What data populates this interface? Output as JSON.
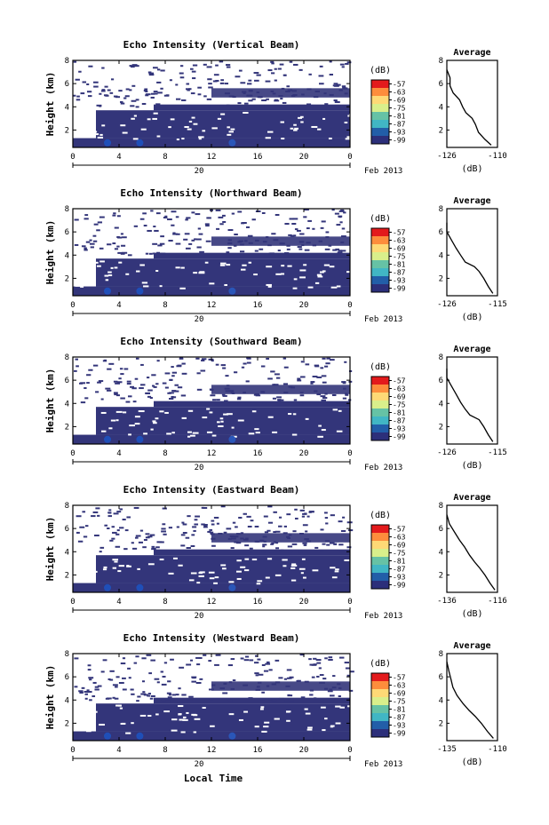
{
  "figure": {
    "colorbar_unit": "(dB)",
    "colorbar_ticks": [
      "-57",
      "-63",
      "-69",
      "-75",
      "-81",
      "-87",
      "-93",
      "-99"
    ],
    "colorbar_colors": [
      "#e31a1c",
      "#fd8d3c",
      "#fed976",
      "#d9ef8b",
      "#66c2a5",
      "#41b6c4",
      "#225ea8",
      "#2c2f7a"
    ],
    "plot_fill": "#33357a",
    "date_label": "Feb 2013",
    "day_label": "20",
    "x_ticks": [
      "0",
      "4",
      "8",
      "12",
      "16",
      "20",
      "0"
    ],
    "y_ticks": [
      "2",
      "4",
      "6",
      "8"
    ],
    "ylabel": "Height (km)",
    "xlabel": "Local Time"
  },
  "chart_data": [
    {
      "type": "heatmap",
      "title": "Echo Intensity (Vertical Beam)",
      "ylabel": "Height (km)",
      "xlim": [
        0,
        24
      ],
      "ylim": [
        0.5,
        8
      ],
      "profile": {
        "title": "Average",
        "xlabel": "(dB)",
        "x_ticks": [
          "-126",
          "-110"
        ],
        "xlim": [
          -126,
          -110
        ],
        "y_ticks": [
          "2",
          "4",
          "6",
          "8"
        ],
        "points": [
          [
            -112,
            0.7
          ],
          [
            -114,
            1.2
          ],
          [
            -116,
            1.8
          ],
          [
            -117,
            2.5
          ],
          [
            -118,
            3.0
          ],
          [
            -120,
            3.5
          ],
          [
            -121,
            4.0
          ],
          [
            -122,
            4.6
          ],
          [
            -124,
            5.2
          ],
          [
            -125,
            5.8
          ],
          [
            -125,
            6.5
          ],
          [
            -126,
            7.2
          ]
        ]
      }
    },
    {
      "type": "heatmap",
      "title": "Echo Intensity (Northward Beam)",
      "ylabel": "Height (km)",
      "xlim": [
        0,
        24
      ],
      "ylim": [
        0.5,
        8
      ],
      "profile": {
        "title": "Average",
        "xlabel": "(dB)",
        "x_ticks": [
          "-126",
          "-115"
        ],
        "xlim": [
          -126,
          -115
        ],
        "y_ticks": [
          "2",
          "4",
          "6",
          "8"
        ],
        "points": [
          [
            -116,
            0.7
          ],
          [
            -117,
            1.3
          ],
          [
            -118,
            2.0
          ],
          [
            -119,
            2.6
          ],
          [
            -120,
            3.0
          ],
          [
            -122,
            3.4
          ],
          [
            -123,
            4.0
          ],
          [
            -124,
            4.6
          ],
          [
            -125,
            5.3
          ],
          [
            -126,
            6.0
          ],
          [
            -126,
            6.8
          ]
        ]
      }
    },
    {
      "type": "heatmap",
      "title": "Echo Intensity (Southward Beam)",
      "ylabel": "Height (km)",
      "xlim": [
        0,
        24
      ],
      "ylim": [
        0.5,
        8
      ],
      "profile": {
        "title": "Average",
        "xlabel": "(dB)",
        "x_ticks": [
          "-126",
          "-115"
        ],
        "xlim": [
          -126,
          -115
        ],
        "y_ticks": [
          "2",
          "4",
          "6",
          "8"
        ],
        "points": [
          [
            -116,
            0.7
          ],
          [
            -117,
            1.3
          ],
          [
            -118,
            2.0
          ],
          [
            -119,
            2.6
          ],
          [
            -121,
            3.0
          ],
          [
            -122,
            3.5
          ],
          [
            -123,
            4.1
          ],
          [
            -124,
            4.8
          ],
          [
            -125,
            5.5
          ],
          [
            -126,
            6.2
          ],
          [
            -126,
            7.0
          ]
        ]
      }
    },
    {
      "type": "heatmap",
      "title": "Echo Intensity (Eastward Beam)",
      "ylabel": "Height (km)",
      "xlim": [
        0,
        24
      ],
      "ylim": [
        0.5,
        8
      ],
      "profile": {
        "title": "Average",
        "xlabel": "(dB)",
        "x_ticks": [
          "-136",
          "-116"
        ],
        "xlim": [
          -136,
          -116
        ],
        "y_ticks": [
          "2",
          "4",
          "6",
          "8"
        ],
        "points": [
          [
            -117,
            0.7
          ],
          [
            -119,
            1.3
          ],
          [
            -121,
            2.0
          ],
          [
            -123,
            2.6
          ],
          [
            -125,
            3.1
          ],
          [
            -127,
            3.7
          ],
          [
            -129,
            4.4
          ],
          [
            -131,
            5.0
          ],
          [
            -133,
            5.7
          ],
          [
            -135,
            6.4
          ],
          [
            -136,
            7.2
          ]
        ]
      }
    },
    {
      "type": "heatmap",
      "title": "Echo Intensity (Westward Beam)",
      "ylabel": "Height (km)",
      "xlim": [
        0,
        24
      ],
      "ylim": [
        0.5,
        8
      ],
      "profile": {
        "title": "Average",
        "xlabel": "(dB)",
        "x_ticks": [
          "-135",
          "-110"
        ],
        "xlim": [
          -135,
          -110
        ],
        "y_ticks": [
          "2",
          "4",
          "6",
          "8"
        ],
        "points": [
          [
            -112,
            0.7
          ],
          [
            -115,
            1.3
          ],
          [
            -118,
            2.0
          ],
          [
            -121,
            2.6
          ],
          [
            -124,
            3.1
          ],
          [
            -127,
            3.7
          ],
          [
            -130,
            4.4
          ],
          [
            -132,
            5.1
          ],
          [
            -133,
            5.8
          ],
          [
            -134,
            6.5
          ],
          [
            -135,
            7.3
          ]
        ]
      }
    }
  ]
}
